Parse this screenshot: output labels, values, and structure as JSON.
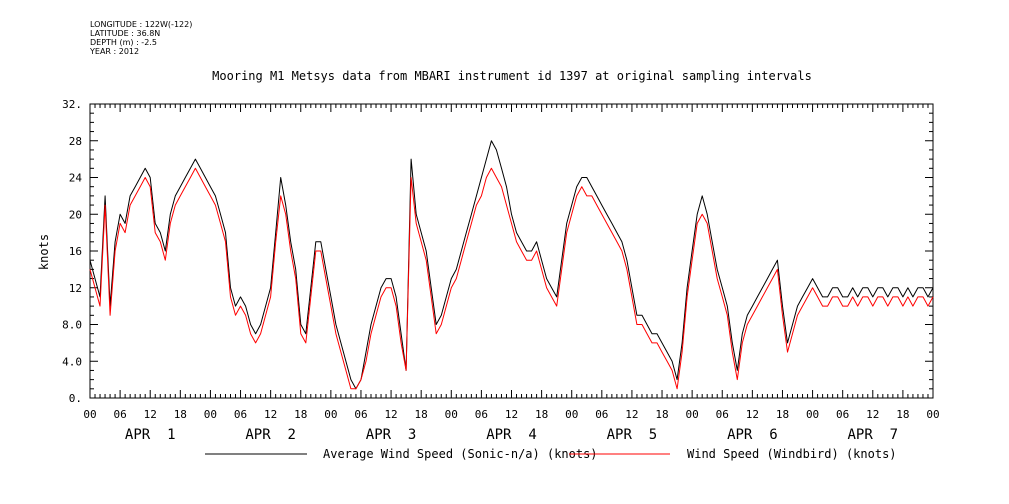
{
  "header": {
    "longitude": "LONGITUDE : 122W(-122)",
    "latitude": "LATITUDE : 36.8N",
    "depth": "DEPTH (m) : -2.5",
    "year": "YEAR : 2012"
  },
  "chart_data": {
    "type": "line",
    "title": "Mooring M1 Metsys data from MBARI instrument id 1397 at original sampling intervals",
    "xlabel": "",
    "ylabel": "knots",
    "ylim": [
      0,
      32
    ],
    "y_ticks": [
      "0.",
      "4.0",
      "8.0",
      "12",
      "16",
      "20",
      "24",
      "28",
      "32."
    ],
    "xlim_hours": [
      0,
      168
    ],
    "x_tick_labels": [
      "00",
      "06",
      "12",
      "18",
      "00",
      "06",
      "12",
      "18",
      "00",
      "06",
      "12",
      "18",
      "00",
      "06",
      "12",
      "18",
      "00",
      "06",
      "12",
      "18",
      "00",
      "06",
      "12",
      "18",
      "00",
      "06",
      "12",
      "18",
      "00"
    ],
    "day_labels": [
      "APR  1",
      "APR  2",
      "APR  3",
      "APR  4",
      "APR  5",
      "APR  6",
      "APR  7"
    ],
    "grid": false,
    "legend_position": "bottom",
    "series": [
      {
        "name": "Average Wind Speed (Sonic-n/a) (knots)",
        "color": "#000000",
        "x_hours": [
          0,
          1,
          2,
          3,
          4,
          5,
          6,
          7,
          8,
          9,
          10,
          11,
          12,
          13,
          14,
          15,
          16,
          17,
          18,
          19,
          20,
          21,
          22,
          23,
          24,
          25,
          26,
          27,
          28,
          29,
          30,
          31,
          32,
          33,
          34,
          35,
          36,
          37,
          38,
          39,
          40,
          41,
          42,
          43,
          44,
          45,
          46,
          47,
          48,
          49,
          50,
          51,
          52,
          53,
          54,
          55,
          56,
          57,
          58,
          59,
          60,
          61,
          62,
          63,
          64,
          65,
          66,
          67,
          68,
          69,
          70,
          71,
          72,
          73,
          74,
          75,
          76,
          77,
          78,
          79,
          80,
          81,
          82,
          83,
          84,
          85,
          86,
          87,
          88,
          89,
          90,
          91,
          92,
          93,
          94,
          95,
          96,
          97,
          98,
          99,
          100,
          101,
          102,
          103,
          104,
          105,
          106,
          107,
          108,
          109,
          110,
          111,
          112,
          113,
          114,
          115,
          116,
          117,
          118,
          119,
          120,
          121,
          122,
          123,
          124,
          125,
          126,
          127,
          128,
          129,
          130,
          131,
          132,
          133,
          134,
          135,
          136,
          137,
          138,
          139,
          140,
          141,
          142,
          143,
          144,
          145,
          146,
          147,
          148,
          149,
          150,
          151,
          152,
          153,
          154,
          155,
          156,
          157,
          158,
          159,
          160,
          161,
          162,
          163,
          164,
          165,
          166,
          167,
          168
        ],
        "values": [
          15,
          13,
          11,
          22,
          10,
          17,
          20,
          19,
          22,
          23,
          24,
          25,
          24,
          19,
          18,
          16,
          20,
          22,
          23,
          24,
          25,
          26,
          25,
          24,
          23,
          22,
          20,
          18,
          12,
          10,
          11,
          10,
          8,
          7,
          8,
          10,
          12,
          18,
          24,
          21,
          17,
          14,
          8,
          7,
          12,
          17,
          17,
          14,
          11,
          8,
          6,
          4,
          2,
          1,
          2,
          5,
          8,
          10,
          12,
          13,
          13,
          11,
          7,
          3,
          26,
          20,
          18,
          16,
          12,
          8,
          9,
          11,
          13,
          14,
          16,
          18,
          20,
          22,
          24,
          26,
          28,
          27,
          25,
          23,
          20,
          18,
          17,
          16,
          16,
          17,
          15,
          13,
          12,
          11,
          15,
          19,
          21,
          23,
          24,
          24,
          23,
          22,
          21,
          20,
          19,
          18,
          17,
          15,
          12,
          9,
          9,
          8,
          7,
          7,
          6,
          5,
          4,
          2,
          6,
          12,
          16,
          20,
          22,
          20,
          17,
          14,
          12,
          10,
          6,
          3,
          7,
          9,
          10,
          11,
          12,
          13,
          14,
          15,
          10,
          6,
          8,
          10,
          11,
          12,
          13,
          12,
          11,
          11,
          12,
          12,
          11,
          11,
          12,
          11,
          12,
          12,
          11,
          12,
          12,
          11,
          12,
          12,
          11,
          12,
          11,
          12,
          12,
          11,
          12
        ],
        "x_hours_note": ""
      },
      {
        "name": "Wind Speed (Windbird) (knots)",
        "color": "#ff0000",
        "x_hours": [
          0,
          1,
          2,
          3,
          4,
          5,
          6,
          7,
          8,
          9,
          10,
          11,
          12,
          13,
          14,
          15,
          16,
          17,
          18,
          19,
          20,
          21,
          22,
          23,
          24,
          25,
          26,
          27,
          28,
          29,
          30,
          31,
          32,
          33,
          34,
          35,
          36,
          37,
          38,
          39,
          40,
          41,
          42,
          43,
          44,
          45,
          46,
          47,
          48,
          49,
          50,
          51,
          52,
          53,
          54,
          55,
          56,
          57,
          58,
          59,
          60,
          61,
          62,
          63,
          64,
          65,
          66,
          67,
          68,
          69,
          70,
          71,
          72,
          73,
          74,
          75,
          76,
          77,
          78,
          79,
          80,
          81,
          82,
          83,
          84,
          85,
          86,
          87,
          88,
          89,
          90,
          91,
          92,
          93,
          94,
          95,
          96,
          97,
          98,
          99,
          100,
          101,
          102,
          103,
          104,
          105,
          106,
          107,
          108,
          109,
          110,
          111,
          112,
          113,
          114,
          115,
          116,
          117,
          118,
          119,
          120,
          121,
          122,
          123,
          124,
          125,
          126,
          127,
          128,
          129,
          130,
          131,
          132,
          133,
          134,
          135,
          136,
          137,
          138,
          139,
          140,
          141,
          142,
          143,
          144,
          145,
          146,
          147,
          148,
          149,
          150,
          151,
          152,
          153,
          154,
          155,
          156,
          157,
          158,
          159,
          160,
          161,
          162,
          163,
          164,
          165,
          166,
          167,
          168
        ],
        "values": [
          14,
          12,
          10,
          21,
          9,
          16,
          19,
          18,
          21,
          22,
          23,
          24,
          23,
          18,
          17,
          15,
          19,
          21,
          22,
          23,
          24,
          25,
          24,
          23,
          22,
          21,
          19,
          17,
          11,
          9,
          10,
          9,
          7,
          6,
          7,
          9,
          11,
          17,
          22,
          20,
          16,
          13,
          7,
          6,
          11,
          16,
          16,
          13,
          10,
          7,
          5,
          3,
          1,
          1,
          2,
          4,
          7,
          9,
          11,
          12,
          12,
          10,
          6,
          3,
          24,
          19,
          17,
          15,
          11,
          7,
          8,
          10,
          12,
          13,
          15,
          17,
          19,
          21,
          22,
          24,
          25,
          24,
          23,
          21,
          19,
          17,
          16,
          15,
          15,
          16,
          14,
          12,
          11,
          10,
          14,
          18,
          20,
          22,
          23,
          22,
          22,
          21,
          20,
          19,
          18,
          17,
          16,
          14,
          11,
          8,
          8,
          7,
          6,
          6,
          5,
          4,
          3,
          1,
          5,
          11,
          15,
          19,
          20,
          19,
          16,
          13,
          11,
          9,
          5,
          2,
          6,
          8,
          9,
          10,
          11,
          12,
          13,
          14,
          9,
          5,
          7,
          9,
          10,
          11,
          12,
          11,
          10,
          10,
          11,
          11,
          10,
          10,
          11,
          10,
          11,
          11,
          10,
          11,
          11,
          10,
          11,
          11,
          10,
          11,
          10,
          11,
          11,
          10,
          11
        ]
      }
    ]
  }
}
